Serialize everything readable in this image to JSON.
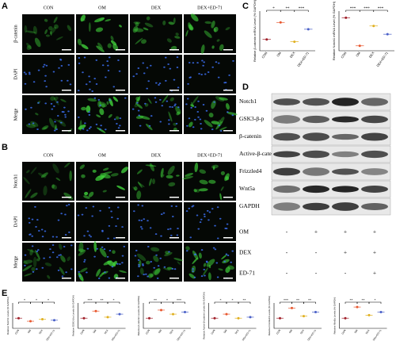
{
  "panel_a": {
    "letter": "A",
    "columns": [
      "CON",
      "OM",
      "DEX",
      "DEX+ED-71"
    ],
    "rows": [
      "β-catenin",
      "DAPI",
      "Merge"
    ]
  },
  "panel_b": {
    "letter": "B",
    "columns": [
      "CON",
      "OM",
      "DEX",
      "DEX+ED-71"
    ],
    "rows": [
      "Notch1",
      "DAPI",
      "Merge"
    ]
  },
  "panel_c": {
    "letter": "C",
    "charts": [
      {
        "type": "dot",
        "ylabel": "Relative β-catenin mRNA Level (% GAPDH)",
        "categories": [
          "CON",
          "OM",
          "DEX",
          "DEX+ED-71"
        ],
        "values": [
          1.0,
          2.5,
          0.8,
          1.9
        ],
        "colors": [
          "#a0202a",
          "#e8572e",
          "#e0b020",
          "#4a60c8"
        ],
        "ylim": [
          0,
          3.5
        ],
        "significance": [
          "*",
          "**",
          "***"
        ]
      },
      {
        "type": "dot",
        "ylabel": "Relative Notch1 mRNA Level (% GAPDH)",
        "categories": [
          "CON",
          "OM",
          "DEX",
          "DEX+ED-71"
        ],
        "values": [
          1.0,
          0.15,
          0.75,
          0.5
        ],
        "colors": [
          "#a0202a",
          "#e8572e",
          "#e0b020",
          "#4a60c8"
        ],
        "ylim": [
          0,
          1.2
        ],
        "significance": [
          "***",
          "***",
          "***"
        ]
      }
    ]
  },
  "panel_d": {
    "letter": "D",
    "bands": [
      "Notch1",
      "GSK3-β-p",
      "β-catenin",
      "Active-β-catenin",
      "Frizzled4",
      "Wnt5a",
      "GAPDH"
    ],
    "treatments": [
      {
        "name": "OM",
        "signs": [
          "-",
          "+",
          "+",
          "+"
        ]
      },
      {
        "name": "DEX",
        "signs": [
          "-",
          "-",
          "+",
          "+"
        ]
      },
      {
        "name": "ED-71",
        "signs": [
          "-",
          "-",
          "-",
          "+"
        ]
      }
    ]
  },
  "panel_e": {
    "letter": "E",
    "charts": [
      {
        "type": "dot",
        "ylabel": "Relative Notch1 Levels (% GAPDH)",
        "categories": [
          "CON",
          "OM",
          "DEX",
          "DEX+ED-71"
        ],
        "values": [
          1.0,
          0.7,
          0.9,
          0.8
        ],
        "colors": [
          "#a0202a",
          "#e8572e",
          "#e0b020",
          "#4a60c8"
        ],
        "ylim": [
          0,
          2.5
        ],
        "significance": [
          "*",
          "*",
          "*"
        ]
      },
      {
        "type": "dot",
        "ylabel": "Relative GSK3-β-p Levels (% GAPDH)",
        "categories": [
          "CON",
          "OM",
          "DEX",
          "DEX+ED-71"
        ],
        "values": [
          1.0,
          1.7,
          1.1,
          1.4
        ],
        "colors": [
          "#a0202a",
          "#e8572e",
          "#e0b020",
          "#4a60c8"
        ],
        "ylim": [
          0,
          2.5
        ],
        "significance": [
          "***",
          "**",
          "*"
        ]
      },
      {
        "type": "dot",
        "ylabel": "Relative β-catenin Levels (% GAPDH)",
        "categories": [
          "CON",
          "OM",
          "DEX",
          "DEX+ED-71"
        ],
        "values": [
          1.0,
          1.8,
          1.4,
          1.6
        ],
        "colors": [
          "#a0202a",
          "#e8572e",
          "#e0b020",
          "#4a60c8"
        ],
        "ylim": [
          0,
          2.5
        ],
        "significance": [
          "**",
          "*",
          "***"
        ]
      },
      {
        "type": "dot",
        "ylabel": "Relative Active-β-catenin Levels (% GAPDH)",
        "categories": [
          "CON",
          "OM",
          "DEX",
          "DEX+ED-71"
        ],
        "values": [
          1.0,
          1.4,
          1.0,
          1.1
        ],
        "colors": [
          "#a0202a",
          "#e8572e",
          "#e0b020",
          "#4a60c8"
        ],
        "ylim": [
          0,
          2.5
        ],
        "significance": [
          "*",
          "*",
          "**"
        ]
      },
      {
        "type": "dot",
        "ylabel": "Relative Frizzled4 Levels (% GAPDH)",
        "categories": [
          "CON",
          "OM",
          "DEX",
          "DEX+ED-71"
        ],
        "values": [
          1.0,
          2.0,
          1.2,
          1.6
        ],
        "colors": [
          "#a0202a",
          "#e8572e",
          "#e0b020",
          "#4a60c8"
        ],
        "ylim": [
          0,
          2.5
        ],
        "significance": [
          "***",
          "**",
          "**"
        ]
      },
      {
        "type": "dot",
        "ylabel": "Relative Wnt5a Levels (% GAPDH)",
        "categories": [
          "CON",
          "OM",
          "DEX",
          "DEX+ED-71"
        ],
        "values": [
          1.0,
          2.1,
          1.3,
          1.6
        ],
        "colors": [
          "#a0202a",
          "#e8572e",
          "#e0b020",
          "#4a60c8"
        ],
        "ylim": [
          0,
          2.5
        ],
        "significance": [
          "**",
          "**",
          "*"
        ]
      }
    ]
  }
}
